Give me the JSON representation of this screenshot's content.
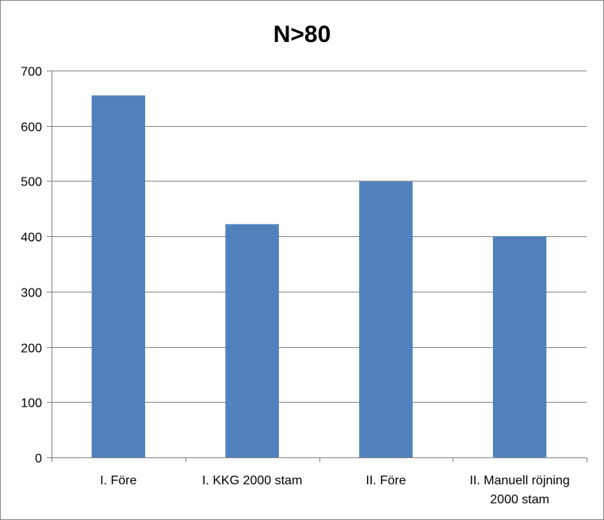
{
  "chart_data": {
    "type": "bar",
    "title": "N>80",
    "categories": [
      [
        "I. Före"
      ],
      [
        "I. KKG 2000 stam"
      ],
      [
        "II. Före"
      ],
      [
        "II. Manuell röjning",
        "2000 stam"
      ]
    ],
    "values": [
      655,
      422,
      499,
      400
    ],
    "ylim": [
      0,
      700
    ],
    "yticks": [
      0,
      100,
      200,
      300,
      400,
      500,
      600,
      700
    ],
    "grid": true,
    "legend": false,
    "colors": {
      "bar": "#4f81bd",
      "grid": "#868686",
      "axis": "#868686"
    }
  }
}
